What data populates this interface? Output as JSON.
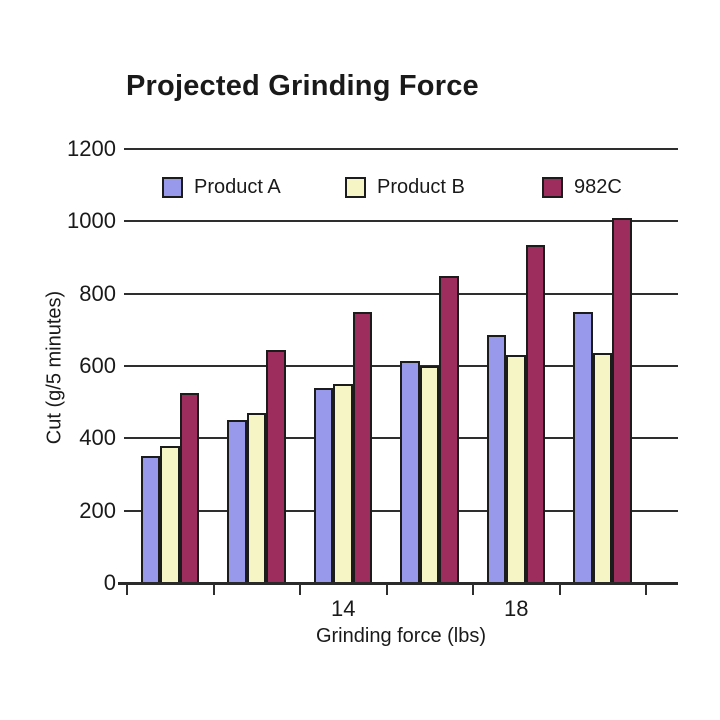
{
  "chart_data": {
    "type": "bar",
    "title": "Projected Grinding Force",
    "xlabel": "Grinding force (lbs)",
    "ylabel": "Cut (g/5 minutes)",
    "ylim": [
      0,
      1200
    ],
    "yticks": [
      0,
      200,
      400,
      600,
      800,
      1000,
      1200
    ],
    "x_tick_labels": [
      "",
      "",
      "14",
      "",
      "18",
      ""
    ],
    "num_groups": 6,
    "grid": true,
    "legend_position": "top",
    "series": [
      {
        "name": "Product A",
        "color": "#9999EB",
        "values": [
          350,
          450,
          540,
          615,
          685,
          750
        ]
      },
      {
        "name": "Product B",
        "color": "#F5F5C6",
        "values": [
          380,
          470,
          550,
          600,
          630,
          635
        ]
      },
      {
        "name": "982C",
        "color": "#9D2D5C",
        "values": [
          525,
          645,
          750,
          850,
          935,
          1010
        ]
      }
    ]
  },
  "colors": {
    "bar_outline": "#1c1c1c",
    "gridline": "#2e2e2e",
    "text": "#1a1a1a",
    "background": "#ffffff"
  }
}
